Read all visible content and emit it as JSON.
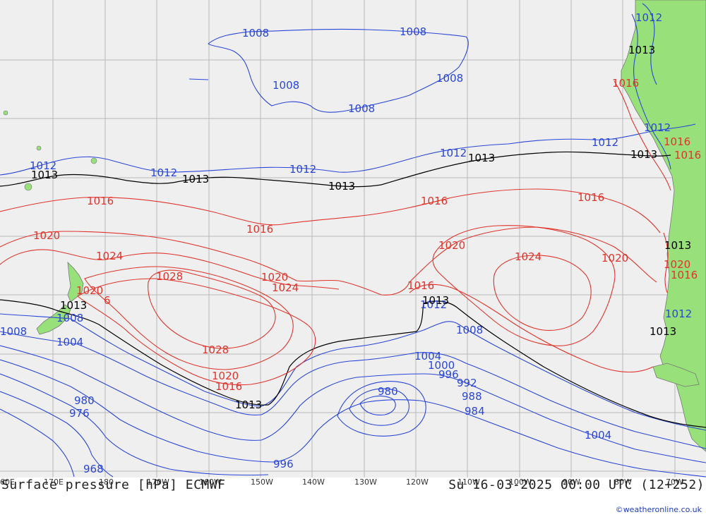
{
  "footer": {
    "left": "Surface pressure [hPa] ECMWF",
    "right": "Su 16-03-2025 00:00 UTC (12+252)",
    "credit": "©weatheronline.co.uk"
  },
  "longitude_labels": [
    "60E",
    "170E",
    "180",
    "170W",
    "160W",
    "150W",
    "140W",
    "130W",
    "120W",
    "110W",
    "100W",
    "90W",
    "80W",
    "70W"
  ],
  "isobar_labels": {
    "blue": [
      "1008",
      "1008",
      "1008",
      "1008",
      "1008",
      "1012",
      "1012",
      "1012",
      "1012",
      "1012",
      "1012",
      "1012",
      "1008",
      "1004",
      "1008",
      "1004",
      "1000",
      "996",
      "992",
      "988",
      "984",
      "980",
      "980",
      "976",
      "968",
      "996",
      "1004",
      "1012",
      "1008",
      "1012"
    ],
    "red": [
      "1016",
      "1016",
      "1016",
      "1016",
      "1016",
      "1020",
      "1024",
      "1028",
      "1020",
      "1024",
      "1028",
      "1020",
      "1016",
      "1020",
      "1020",
      "1024",
      "1020",
      "1016",
      "1016",
      "1016",
      "6",
      "1020",
      "1016"
    ],
    "black": [
      "1013",
      "1013",
      "1013",
      "1013",
      "1013",
      "1013",
      "1013",
      "1013",
      "1013",
      "1013",
      "1013"
    ]
  },
  "colors": {
    "ocean": "#efefef",
    "land": "#98e07a",
    "grid": "#b8b8b8",
    "isobar_low": "#2a46d8",
    "isobar_high": "#e0342c",
    "isobar_1013": "#000000"
  }
}
